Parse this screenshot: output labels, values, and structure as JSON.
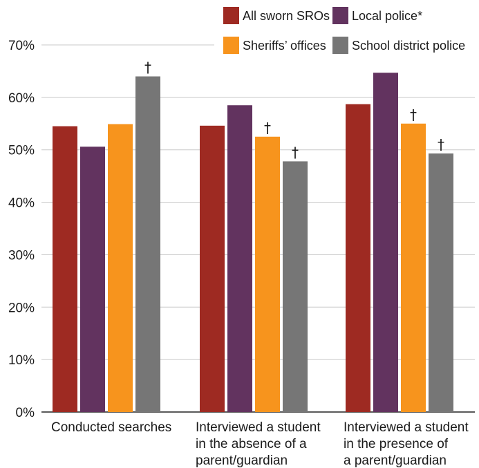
{
  "chart_data": {
    "type": "bar",
    "categories": [
      [
        "Conducted searches"
      ],
      [
        "Interviewed a student",
        "in the absence of a",
        "parent/guardian"
      ],
      [
        "Interviewed a student",
        "in the presence of",
        "a parent/guardian"
      ]
    ],
    "series": [
      {
        "name": "All sworn SROs",
        "color": "#9e2a22",
        "values": [
          54.5,
          54.6,
          58.7
        ],
        "flags": [
          "",
          "",
          ""
        ]
      },
      {
        "name": "Local police*",
        "color": "#62335f",
        "values": [
          50.6,
          58.5,
          64.7
        ],
        "flags": [
          "",
          "",
          ""
        ]
      },
      {
        "name": "Sheriffs’ offices",
        "color": "#f7941d",
        "values": [
          54.9,
          52.5,
          55.0
        ],
        "flags": [
          "",
          "†",
          "†"
        ]
      },
      {
        "name": "School district police",
        "color": "#767676",
        "values": [
          64.0,
          47.8,
          49.3
        ],
        "flags": [
          "†",
          "†",
          "†"
        ]
      }
    ],
    "ylim": [
      0,
      70
    ],
    "yticks": [
      0,
      10,
      20,
      30,
      40,
      50,
      60,
      70
    ],
    "ytick_labels": [
      "0%",
      "10%",
      "20%",
      "30%",
      "40%",
      "50%",
      "60%",
      "70%"
    ],
    "grid": true,
    "legend_position": "top-right"
  }
}
